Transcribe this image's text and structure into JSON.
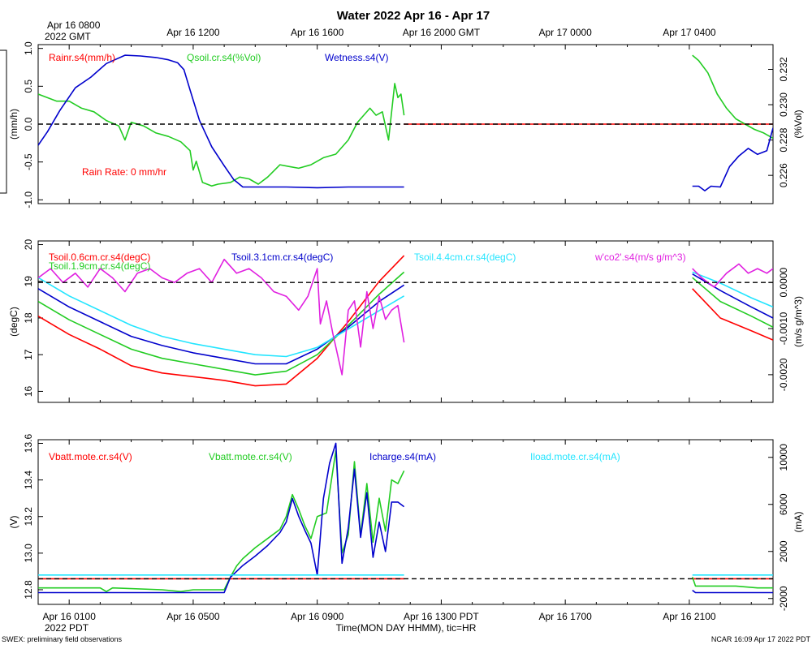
{
  "title": "Water 2022 Apr 16 - Apr 17",
  "top_axis": {
    "first_tick_line1": "Apr 16 0800",
    "first_tick_line2": "2022 GMT",
    "ticks": [
      "Apr 16 1200",
      "Apr 16 1600",
      "Apr 16 2000 GMT",
      "Apr 17 0000",
      "Apr 17 0400"
    ]
  },
  "bottom_axis": {
    "ticks": [
      "Apr 16 0100",
      "Apr 16 0500",
      "Apr 16 0900",
      "Apr 16 1300 PDT",
      "Apr 16 1700",
      "Apr 16 2100"
    ],
    "year_label": "2022 PDT",
    "xlabel": "Time(MON DAY HHMM), tic=HR"
  },
  "footer": {
    "left": "SWEX: preliminary field observations",
    "right": "NCAR 16:09 Apr 17 2022 PDT"
  },
  "colors": {
    "red": "#ff0000",
    "green": "#22cc22",
    "blue": "#0000cc",
    "cyan": "#22e5ff",
    "magenta": "#e020e0",
    "black": "#000000"
  },
  "chart_data": [
    {
      "type": "line",
      "title": "Water panel",
      "x_unit": "hours since Apr 16 0000 PDT",
      "xlim": [
        0,
        23.7
      ],
      "left_axis": {
        "label": "(mm/h)",
        "lim": [
          -1.05,
          1.05
        ],
        "ticks": [
          "1.0",
          "0.5",
          "0.0",
          "-0.5",
          "-1.0"
        ],
        "tick_values": [
          1.0,
          0.5,
          0.0,
          -0.5,
          -1.0
        ]
      },
      "right_axis": {
        "label": "(%Vol)",
        "lim": [
          0.2244,
          0.2334
        ],
        "ticks": [
          "0.232",
          "0.230",
          "0.228",
          "0.226"
        ],
        "tick_values": [
          0.232,
          0.23,
          0.228,
          0.226
        ]
      },
      "reference_line": {
        "axis": "left",
        "value": 0.0
      },
      "annotation": "Rain Rate: 0 mm/hr",
      "series": [
        {
          "name": "Rainr.s4(mm/h)",
          "color": "red",
          "axis": "left",
          "x": [
            0,
            11.8,
            21.1,
            23.7
          ],
          "y": [
            0,
            0,
            0,
            0
          ],
          "breaks": [
            1
          ]
        },
        {
          "name": "Qsoil.cr.s4(%Vol)",
          "color": "green",
          "axis": "right",
          "x": [
            0,
            0.6,
            1.0,
            1.4,
            1.8,
            2.2,
            2.6,
            2.8,
            3.0,
            3.4,
            3.8,
            4.2,
            4.6,
            4.9,
            5.0,
            5.1,
            5.3,
            5.6,
            5.8,
            6.2,
            6.5,
            6.8,
            7.1,
            7.4,
            7.8,
            8.1,
            8.4,
            8.8,
            9.2,
            9.6,
            10.0,
            10.3,
            10.5,
            10.7,
            10.9,
            11.1,
            11.3,
            11.5,
            11.6,
            11.7,
            11.8,
            21.1,
            21.3,
            21.6,
            21.9,
            22.2,
            22.5,
            22.8,
            23.1,
            23.4,
            23.7
          ],
          "y": [
            0.2306,
            0.2302,
            0.2302,
            0.2298,
            0.2296,
            0.2291,
            0.2288,
            0.228,
            0.229,
            0.2288,
            0.2284,
            0.2282,
            0.2279,
            0.2274,
            0.2263,
            0.2268,
            0.2256,
            0.2254,
            0.2255,
            0.2256,
            0.2259,
            0.2258,
            0.2255,
            0.2259,
            0.2266,
            0.2265,
            0.2264,
            0.2266,
            0.227,
            0.2272,
            0.228,
            0.229,
            0.2294,
            0.2298,
            0.2294,
            0.2296,
            0.228,
            0.2312,
            0.2304,
            0.2306,
            0.2294,
            0.2328,
            0.2325,
            0.2318,
            0.2306,
            0.2298,
            0.2292,
            0.2289,
            0.2286,
            0.2284,
            0.2281
          ],
          "breaks": [
            41
          ]
        },
        {
          "name": "Wetness.s4(V)",
          "color": "blue",
          "axis": "left",
          "x": [
            0,
            0.3,
            0.7,
            1.2,
            1.7,
            2.2,
            2.8,
            3.3,
            3.8,
            4.2,
            4.5,
            4.7,
            4.9,
            5.2,
            5.6,
            6.0,
            6.3,
            6.6,
            7.0,
            8.0,
            9.0,
            10.0,
            11.0,
            11.8,
            21.1,
            21.3,
            21.5,
            21.7,
            22.0,
            22.3,
            22.6,
            22.9,
            23.2,
            23.5,
            23.7
          ],
          "y": [
            -0.28,
            -0.1,
            0.18,
            0.48,
            0.62,
            0.8,
            0.91,
            0.9,
            0.88,
            0.85,
            0.81,
            0.72,
            0.45,
            0.05,
            -0.3,
            -0.55,
            -0.73,
            -0.83,
            -0.83,
            -0.83,
            -0.84,
            -0.83,
            -0.83,
            -0.83,
            -0.82,
            -0.82,
            -0.88,
            -0.82,
            -0.83,
            -0.56,
            -0.42,
            -0.32,
            -0.4,
            -0.35,
            -0.05
          ],
          "breaks": [
            24
          ]
        }
      ]
    },
    {
      "type": "line",
      "title": "Soil temperature panel",
      "x_unit": "hours since Apr 16 0000 PDT",
      "xlim": [
        0,
        23.7
      ],
      "left_axis": {
        "label": "(degC)",
        "lim": [
          15.7,
          20.1
        ],
        "ticks": [
          "20",
          "19",
          "18",
          "17",
          "16"
        ],
        "tick_values": [
          20,
          19,
          18,
          17,
          16
        ]
      },
      "right_axis": {
        "label": "(m/s g/m^3)",
        "lim": [
          -0.0026,
          0.0009
        ],
        "ticks": [
          "0.0000",
          "-0.0010",
          "-0.0020"
        ],
        "tick_values": [
          0.0,
          -0.001,
          -0.002
        ]
      },
      "reference_line": {
        "axis": "right",
        "value": 0.0
      },
      "series": [
        {
          "name": "Tsoil.0.6cm.cr.s4(degC)",
          "color": "red",
          "axis": "left",
          "x": [
            0,
            1,
            2,
            3,
            4,
            5,
            6,
            7,
            8,
            9,
            10,
            11,
            11.8,
            21.1,
            22,
            23,
            23.7
          ],
          "y": [
            18.05,
            17.55,
            17.15,
            16.7,
            16.5,
            16.4,
            16.3,
            16.15,
            16.2,
            16.9,
            17.9,
            19.0,
            19.7,
            18.8,
            18.0,
            17.65,
            17.4
          ],
          "breaks": [
            13
          ]
        },
        {
          "name": "Tsoil.1.9cm.cr.s4(degC)",
          "color": "green",
          "axis": "left",
          "x": [
            0,
            1,
            2,
            3,
            4,
            5,
            6,
            7,
            8,
            9,
            10,
            11,
            11.8,
            21.1,
            22,
            23,
            23.7
          ],
          "y": [
            18.45,
            17.95,
            17.55,
            17.15,
            16.9,
            16.75,
            16.6,
            16.45,
            16.55,
            17.0,
            17.8,
            18.65,
            19.25,
            19.1,
            18.45,
            18.05,
            17.75
          ],
          "breaks": [
            13
          ]
        },
        {
          "name": "Tsoil.3.1cm.cr.s4(degC)",
          "color": "blue",
          "axis": "left",
          "x": [
            0,
            1,
            2,
            3,
            4,
            5,
            6,
            7,
            8,
            9,
            10,
            11,
            11.8,
            21.1,
            22,
            23,
            23.7
          ],
          "y": [
            18.8,
            18.3,
            17.9,
            17.5,
            17.25,
            17.05,
            16.9,
            16.75,
            16.75,
            17.15,
            17.75,
            18.45,
            18.9,
            19.2,
            18.75,
            18.3,
            18.0
          ],
          "breaks": [
            13
          ]
        },
        {
          "name": "Tsoil.4.4cm.cr.s4(degC)",
          "color": "cyan",
          "axis": "left",
          "x": [
            0,
            1,
            2,
            3,
            4,
            5,
            6,
            7,
            8,
            9,
            10,
            11,
            11.8,
            21.1,
            22,
            23,
            23.7
          ],
          "y": [
            19.1,
            18.6,
            18.2,
            17.8,
            17.5,
            17.3,
            17.15,
            17.0,
            16.95,
            17.2,
            17.7,
            18.2,
            18.6,
            19.25,
            18.95,
            18.55,
            18.3
          ],
          "breaks": [
            13
          ]
        },
        {
          "name": "w'co2'.s4(m/s g/m^3)",
          "color": "magenta",
          "axis": "right",
          "x": [
            0,
            0.4,
            0.8,
            1.2,
            1.6,
            2.0,
            2.4,
            2.8,
            3.2,
            3.6,
            4.0,
            4.4,
            4.8,
            5.2,
            5.6,
            6.0,
            6.4,
            6.8,
            7.2,
            7.6,
            8.0,
            8.4,
            8.7,
            9.0,
            9.1,
            9.3,
            9.5,
            9.8,
            10.0,
            10.2,
            10.4,
            10.6,
            10.8,
            11.0,
            11.2,
            11.4,
            11.6,
            11.8,
            21.1,
            21.4,
            21.8,
            22.2,
            22.6,
            22.9,
            23.2,
            23.5,
            23.7
          ],
          "y": [
            0.0001,
            0.0003,
            0.0,
            0.0002,
            -0.0001,
            0.0003,
            0.0001,
            -0.0002,
            0.0002,
            0.0003,
            0.0001,
            0.0,
            0.0002,
            0.0003,
            0.0,
            0.0005,
            0.0002,
            0.0003,
            0.0001,
            -0.0002,
            -0.0003,
            -0.0006,
            -0.0003,
            0.0003,
            -0.0009,
            -0.0004,
            -0.0011,
            -0.002,
            -0.0006,
            -0.0004,
            -0.0014,
            -0.0002,
            -0.001,
            -0.0003,
            -0.0008,
            -0.0006,
            -0.0005,
            -0.0013,
            0.0003,
            0.0001,
            -0.0001,
            0.0002,
            0.0004,
            0.0002,
            0.0003,
            0.0002,
            0.0003
          ],
          "breaks": [
            38
          ]
        }
      ]
    },
    {
      "type": "line",
      "title": "Battery panel",
      "x_unit": "hours since Apr 16 0000 PDT",
      "xlim": [
        0,
        23.7
      ],
      "left_axis": {
        "label": "(V)",
        "lim": [
          12.72,
          13.62
        ],
        "ticks": [
          "13.6",
          "13.4",
          "13.2",
          "13.0",
          "12.8"
        ],
        "tick_values": [
          13.6,
          13.4,
          13.2,
          13.0,
          12.8
        ]
      },
      "right_axis": {
        "label": "(mA)",
        "lim": [
          -2500,
          11500
        ],
        "ticks": [
          "10000",
          "6000",
          "2000",
          "-2000"
        ],
        "tick_values": [
          10000,
          6000,
          2000,
          -2000
        ]
      },
      "reference_line": {
        "axis": "left",
        "value": 12.86
      },
      "series": [
        {
          "name": "Vbatt.mote.cr.s4(V)",
          "color": "red",
          "axis": "left",
          "x": [
            0,
            11.8,
            21.1,
            23.7
          ],
          "y": [
            12.86,
            12.86,
            12.86,
            12.86
          ],
          "breaks": [
            2
          ]
        },
        {
          "name": "Vbatt.mote.cr.s4(V)",
          "color": "green",
          "axis": "left",
          "x": [
            0,
            2.0,
            2.2,
            2.4,
            4.0,
            4.6,
            5.0,
            5.4,
            6.0,
            6.2,
            6.4,
            6.6,
            7.0,
            7.4,
            7.8,
            8.0,
            8.2,
            8.4,
            8.6,
            8.8,
            9.0,
            9.3,
            9.6,
            9.8,
            10.0,
            10.2,
            10.4,
            10.6,
            10.8,
            11.0,
            11.2,
            11.4,
            11.6,
            11.8,
            21.1,
            21.2,
            21.6,
            22.5,
            23.2,
            23.7
          ],
          "y": [
            12.81,
            12.81,
            12.79,
            12.81,
            12.8,
            12.79,
            12.8,
            12.8,
            12.8,
            12.87,
            12.93,
            12.97,
            13.03,
            13.08,
            13.13,
            13.2,
            13.32,
            13.24,
            13.15,
            13.08,
            13.2,
            13.22,
            13.56,
            13.0,
            13.1,
            13.5,
            13.1,
            13.38,
            13.06,
            13.3,
            13.12,
            13.4,
            13.38,
            13.45,
            12.87,
            12.82,
            12.82,
            12.82,
            12.81,
            12.81
          ],
          "breaks": [
            34
          ]
        },
        {
          "name": "Icharge.s4(mA)",
          "color": "blue",
          "axis": "right",
          "x": [
            0,
            4,
            6.0,
            6.2,
            6.6,
            7.0,
            7.4,
            7.8,
            8.0,
            8.2,
            8.4,
            8.6,
            8.8,
            9.0,
            9.2,
            9.4,
            9.6,
            9.8,
            10.0,
            10.2,
            10.4,
            10.6,
            10.8,
            11.0,
            11.2,
            11.4,
            11.6,
            11.8,
            21.1,
            21.2,
            22,
            23,
            23.7
          ],
          "y": [
            -1500,
            -1500,
            -1500,
            -200,
            800,
            1600,
            2500,
            3600,
            4500,
            6500,
            5000,
            3800,
            2700,
            0,
            6500,
            9500,
            11200,
            1000,
            4000,
            9000,
            3200,
            7000,
            1500,
            4500,
            2000,
            6200,
            6200,
            5800,
            -1300,
            -1500,
            -1500,
            -1500,
            -1500
          ],
          "breaks": [
            28
          ]
        },
        {
          "name": "Iload.mote.cr.s4(mA)",
          "color": "cyan",
          "axis": "right",
          "x": [
            0,
            11.8,
            21.1,
            23.7
          ],
          "y": [
            0,
            0,
            0,
            0
          ],
          "breaks": [
            2
          ]
        }
      ]
    }
  ]
}
